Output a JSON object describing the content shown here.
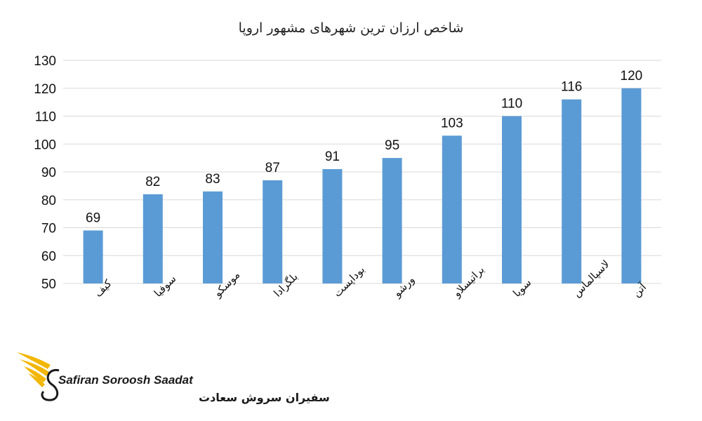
{
  "chart_data": {
    "type": "bar",
    "title": "شاخص ارزان ترین شهرهای مشهور اروپا",
    "categories": [
      "کیف",
      "سوفیا",
      "موسکو",
      "بلگرادا",
      "بوداپست",
      "ورشو",
      "براتیسلاو",
      "سویا",
      "لاسپالماس",
      "آتن"
    ],
    "values": [
      69,
      82,
      83,
      87,
      91,
      95,
      103,
      110,
      116,
      120
    ],
    "ylim": [
      50,
      130
    ],
    "yticks": [
      50,
      60,
      70,
      80,
      90,
      100,
      110,
      120,
      130
    ],
    "xlabel": "",
    "ylabel": "",
    "grid": true,
    "bar_color": "#5b9bd5"
  },
  "logo": {
    "name_en": "Safiran Soroosh Saadat",
    "name_fa": "سفیران سروش سعادت",
    "color": "#f2b705"
  }
}
